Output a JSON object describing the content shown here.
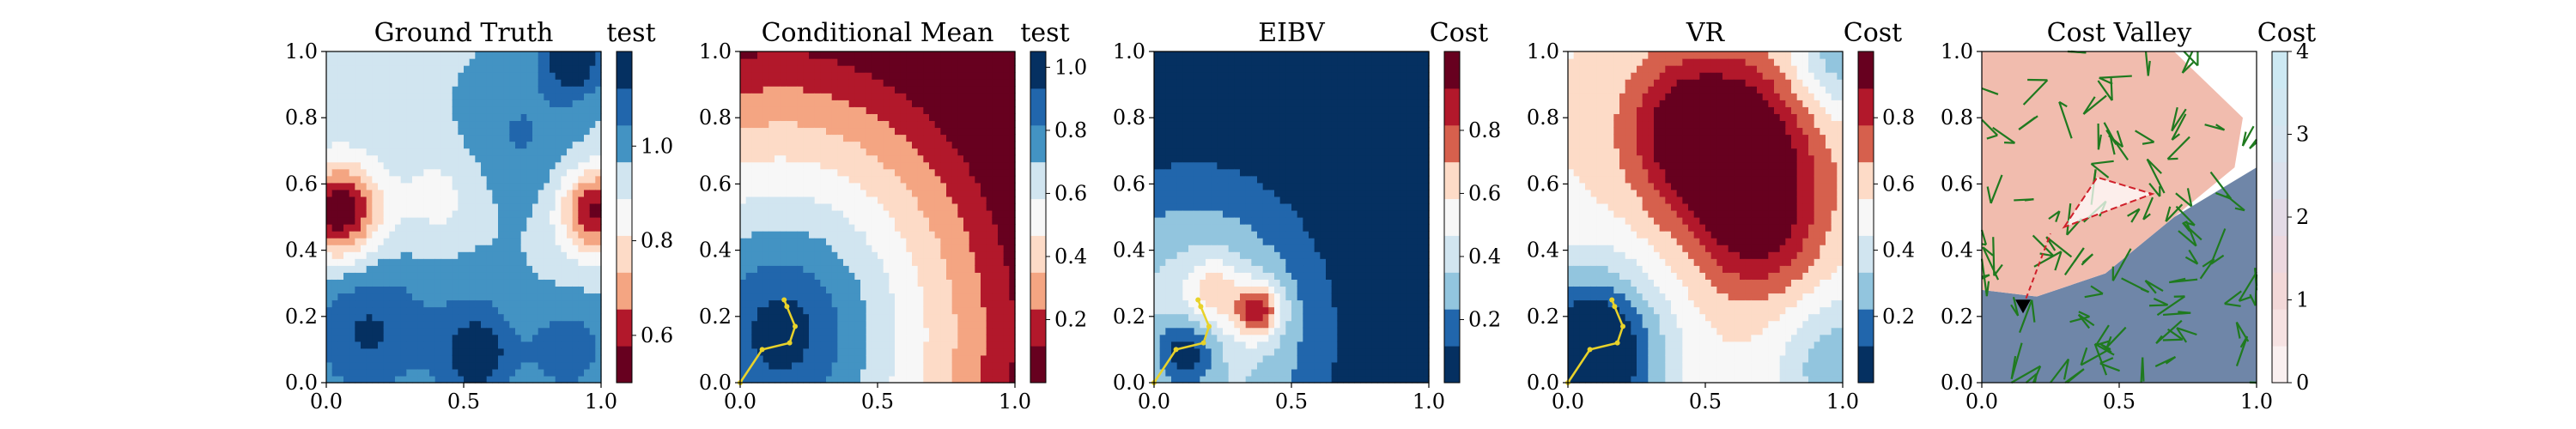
{
  "chart_data": [
    {
      "type": "heatmap",
      "title": "Ground Truth",
      "xlabel": "",
      "ylabel": "",
      "xlim": [
        0.0,
        1.0
      ],
      "ylim": [
        0.0,
        1.0
      ],
      "x_ticks": [
        "0.0",
        "0.5",
        "1.0"
      ],
      "y_ticks": [
        "0.0",
        "0.2",
        "0.4",
        "0.6",
        "0.8",
        "1.0"
      ],
      "colorbar": {
        "label": "test",
        "range": [
          0.5,
          1.2
        ],
        "ticks": [
          "0.6",
          "0.8",
          "1.0"
        ],
        "tick_values": [
          0.6,
          0.8,
          1.0
        ],
        "cmap": "RdBu"
      },
      "field": {
        "base": 0.95,
        "blobs": [
          {
            "x": 0.05,
            "y": 0.52,
            "amp": -0.45,
            "s": 0.1
          },
          {
            "x": 0.98,
            "y": 0.52,
            "amp": -0.4,
            "s": 0.09
          },
          {
            "x": 0.42,
            "y": 0.55,
            "amp": -0.1,
            "s": 0.12
          },
          {
            "x": 0.9,
            "y": 0.98,
            "amp": 0.25,
            "s": 0.08
          },
          {
            "x": 0.15,
            "y": 0.15,
            "amp": 0.18,
            "s": 0.15
          },
          {
            "x": 0.55,
            "y": 0.08,
            "amp": 0.22,
            "s": 0.1
          },
          {
            "x": 0.88,
            "y": 0.1,
            "amp": 0.15,
            "s": 0.1
          },
          {
            "x": 0.7,
            "y": 0.75,
            "amp": 0.1,
            "s": 0.15
          },
          {
            "x": 0.5,
            "y": 0.3,
            "amp": 0.05,
            "s": 0.15
          }
        ]
      },
      "path": []
    },
    {
      "type": "heatmap",
      "title": "Conditional Mean",
      "xlabel": "",
      "ylabel": "",
      "xlim": [
        0.0,
        1.0
      ],
      "ylim": [
        0.0,
        1.0
      ],
      "x_ticks": [
        "0.0",
        "0.5",
        "1.0"
      ],
      "y_ticks": [
        "0.0",
        "0.2",
        "0.4",
        "0.6",
        "0.8",
        "1.0"
      ],
      "colorbar": {
        "label": "test",
        "range": [
          0.0,
          1.05
        ],
        "ticks": [
          "0.2",
          "0.4",
          "0.6",
          "0.8",
          "1.0"
        ],
        "tick_values": [
          0.2,
          0.4,
          0.6,
          0.8,
          1.0
        ],
        "cmap": "RdBu"
      },
      "field": {
        "radial": {
          "cx": 0.15,
          "cy": 0.15,
          "r_max": 0.95,
          "v_min": 0.0,
          "v_max": 1.05
        }
      },
      "path": [
        [
          0.0,
          0.0
        ],
        [
          0.08,
          0.1
        ],
        [
          0.18,
          0.12
        ],
        [
          0.2,
          0.17
        ],
        [
          0.17,
          0.23
        ],
        [
          0.16,
          0.25
        ]
      ]
    },
    {
      "type": "heatmap",
      "title": "EIBV",
      "xlabel": "",
      "ylabel": "",
      "xlim": [
        0.0,
        1.0
      ],
      "ylim": [
        0.0,
        1.0
      ],
      "x_ticks": [
        "0.0",
        "0.5",
        "1.0"
      ],
      "y_ticks": [
        "0.0",
        "0.2",
        "0.4",
        "0.6",
        "0.8",
        "1.0"
      ],
      "colorbar": {
        "label": "Cost",
        "range": [
          0.0,
          1.05
        ],
        "ticks": [
          "0.2",
          "0.4",
          "0.6",
          "0.8"
        ],
        "tick_values": [
          0.2,
          0.4,
          0.6,
          0.8
        ],
        "cmap": "RdBu_r"
      },
      "field": {
        "radial": {
          "cx": 0.15,
          "cy": 0.15,
          "r_max": 0.65,
          "v_min": 0.55,
          "v_max": 0.0,
          "outside": 0.0
        },
        "blobs": [
          {
            "x": 0.38,
            "y": 0.22,
            "amp": 0.55,
            "s": 0.06
          },
          {
            "x": 0.22,
            "y": 0.28,
            "amp": 0.25,
            "s": 0.07
          },
          {
            "x": 0.12,
            "y": 0.1,
            "amp": -0.45,
            "s": 0.08
          }
        ]
      },
      "path": [
        [
          0.0,
          0.0
        ],
        [
          0.08,
          0.1
        ],
        [
          0.18,
          0.12
        ],
        [
          0.2,
          0.17
        ],
        [
          0.17,
          0.23
        ],
        [
          0.16,
          0.25
        ]
      ]
    },
    {
      "type": "heatmap",
      "title": "VR",
      "xlabel": "",
      "ylabel": "",
      "xlim": [
        0.0,
        1.0
      ],
      "ylim": [
        0.0,
        1.0
      ],
      "x_ticks": [
        "0.0",
        "0.5",
        "1.0"
      ],
      "y_ticks": [
        "0.0",
        "0.2",
        "0.4",
        "0.6",
        "0.8",
        "1.0"
      ],
      "colorbar": {
        "label": "Cost",
        "range": [
          0.0,
          1.0
        ],
        "ticks": [
          "0.2",
          "0.4",
          "0.6",
          "0.8"
        ],
        "tick_values": [
          0.2,
          0.4,
          0.6,
          0.8
        ],
        "cmap": "RdBu_r"
      },
      "field": {
        "base": 0.55,
        "blobs": [
          {
            "x": 0.62,
            "y": 0.7,
            "amp": 0.5,
            "s": 0.2
          },
          {
            "x": 0.4,
            "y": 0.78,
            "amp": 0.25,
            "s": 0.15
          },
          {
            "x": 0.7,
            "y": 0.45,
            "amp": 0.25,
            "s": 0.15
          },
          {
            "x": 0.08,
            "y": 0.08,
            "amp": -0.7,
            "s": 0.18
          },
          {
            "x": 0.98,
            "y": 0.98,
            "amp": -0.3,
            "s": 0.12
          },
          {
            "x": 0.98,
            "y": 0.05,
            "amp": -0.3,
            "s": 0.15
          }
        ]
      },
      "path": [
        [
          0.0,
          0.0
        ],
        [
          0.08,
          0.1
        ],
        [
          0.18,
          0.12
        ],
        [
          0.2,
          0.17
        ],
        [
          0.17,
          0.23
        ],
        [
          0.16,
          0.25
        ]
      ]
    },
    {
      "type": "heatmap",
      "title": "Cost Valley",
      "xlabel": "",
      "ylabel": "",
      "xlim": [
        0.0,
        1.0
      ],
      "ylim": [
        0.0,
        1.0
      ],
      "x_ticks": [
        "0.0",
        "0.5",
        "1.0"
      ],
      "y_ticks": [
        "0.0",
        "0.2",
        "0.4",
        "0.6",
        "0.8",
        "1.0"
      ],
      "colorbar": {
        "label": "Cost",
        "range": [
          0.0,
          4.0
        ],
        "ticks": [
          "0",
          "1",
          "2",
          "3",
          "4"
        ],
        "tick_values": [
          0,
          1,
          2,
          3,
          4
        ],
        "cmap": "Reds_light"
      },
      "regions": [
        {
          "name": "low-cost",
          "color": "#6f86a8",
          "polygon": [
            [
              0.0,
              0.0
            ],
            [
              0.0,
              0.28
            ],
            [
              0.2,
              0.26
            ],
            [
              0.45,
              0.33
            ],
            [
              0.7,
              0.5
            ],
            [
              1.0,
              0.65
            ],
            [
              1.0,
              0.0
            ]
          ]
        },
        {
          "name": "high-cost",
          "color": "#f1bcae",
          "polygon": [
            [
              0.0,
              0.28
            ],
            [
              0.0,
              1.0
            ],
            [
              0.7,
              1.0
            ],
            [
              0.95,
              0.8
            ],
            [
              0.92,
              0.65
            ],
            [
              0.7,
              0.5
            ],
            [
              0.45,
              0.33
            ],
            [
              0.2,
              0.26
            ]
          ]
        }
      ],
      "triangle": [
        [
          0.3,
          0.47
        ],
        [
          0.42,
          0.62
        ],
        [
          0.62,
          0.57
        ]
      ],
      "start": [
        0.15,
        0.23
      ],
      "goal": [
        0.25,
        0.45
      ],
      "tree_seed": 7,
      "path": []
    }
  ]
}
